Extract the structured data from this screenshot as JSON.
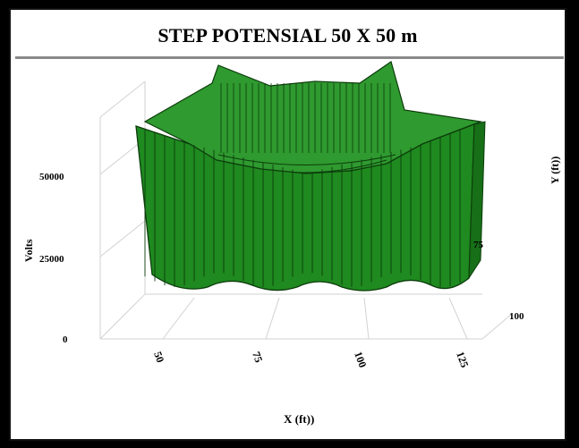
{
  "chart_data": {
    "type": "surface3d",
    "title": "STEP POTENSIAL 50 X 50 m",
    "xlabel": "X (ft))",
    "ylabel": "Y (ft))",
    "zlabel": "Volts",
    "x_ticks": [
      "50",
      "75",
      "100",
      "125"
    ],
    "y_ticks": [
      "75",
      "100"
    ],
    "z_ticks": [
      "0",
      "25000",
      "50000"
    ],
    "zlim": [
      0,
      60000
    ],
    "surface_color": "#1f8a1f"
  }
}
